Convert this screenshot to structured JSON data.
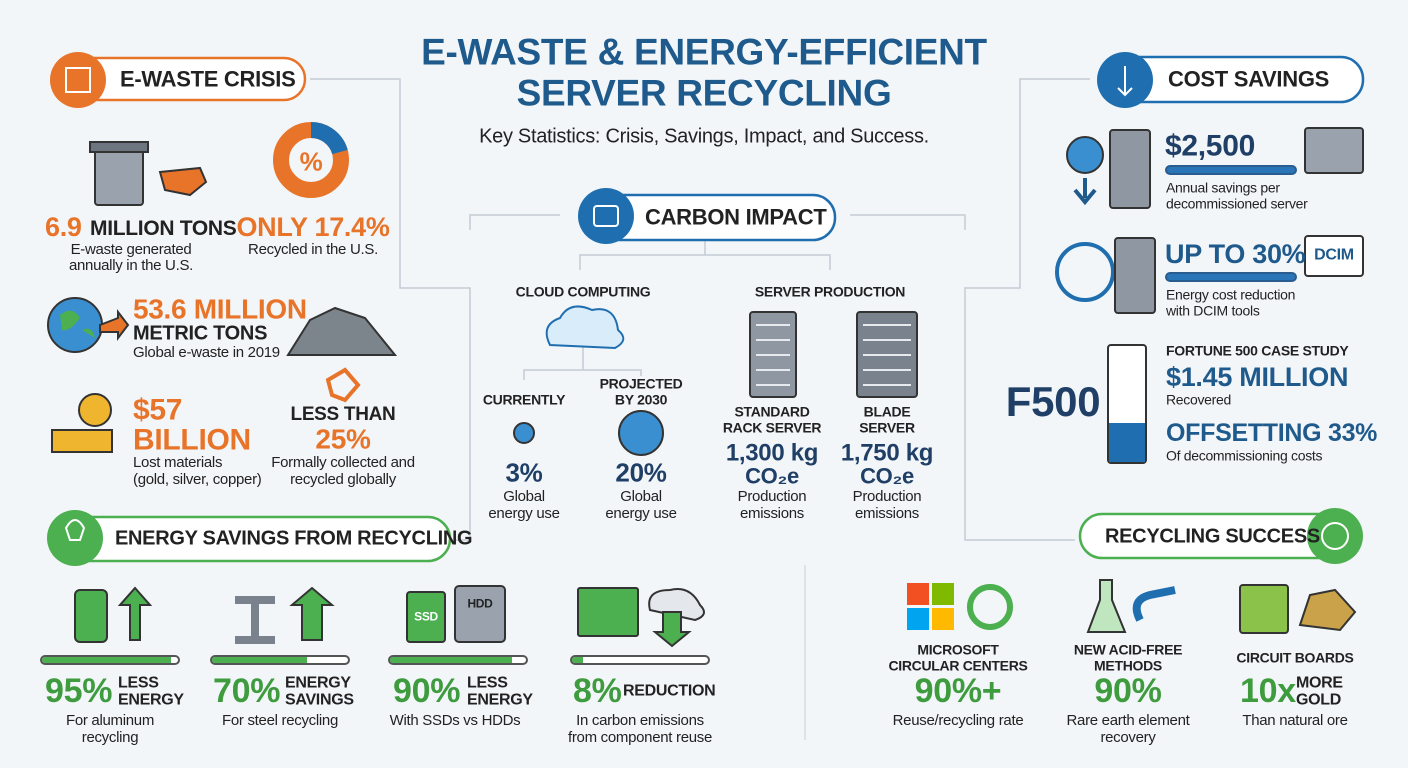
{
  "header": {
    "title": [
      "E-WASTE & ENERGY-EFFICIENT",
      "SERVER RECYCLING"
    ],
    "subtitle": "Key Statistics: Crisis, Savings, Impact, and Success."
  },
  "ewaste_crisis": {
    "heading": "E-WASTE CRISIS",
    "items": [
      {
        "value": "6.9",
        "unit": "MILLION TONS",
        "description": [
          "E-waste generated",
          "annually in the U.S."
        ]
      },
      {
        "value": "ONLY 17.4%",
        "icon_label": "%",
        "description": [
          "Recycled in the U.S."
        ]
      },
      {
        "value": "53.6 MILLION",
        "unit": "METRIC TONS",
        "description": [
          "Global e-waste in 2019"
        ]
      },
      {
        "value": [
          "$57",
          "BILLION"
        ],
        "description": [
          "Lost materials",
          "(gold, silver, copper)"
        ]
      },
      {
        "label": "LESS THAN",
        "value": "25%",
        "description": [
          "Formally collected and",
          "recycled globally"
        ]
      }
    ]
  },
  "carbon_impact": {
    "heading": "CARBON IMPACT",
    "cloud_computing": {
      "heading": "CLOUD COMPUTING",
      "items": [
        {
          "label": [
            "CURRENTLY"
          ],
          "value": "3%",
          "description": [
            "Global",
            "energy use"
          ]
        },
        {
          "label": [
            "PROJECTED",
            "BY 2030"
          ],
          "value": "20%",
          "description": [
            "Global",
            "energy use"
          ]
        }
      ]
    },
    "server_production": {
      "heading": "SERVER PRODUCTION",
      "items": [
        {
          "label": [
            "STANDARD",
            "RACK SERVER"
          ],
          "value": "1,300 kg",
          "unit": "CO₂e",
          "description": [
            "Production",
            "emissions"
          ]
        },
        {
          "label": [
            "BLADE",
            "SERVER"
          ],
          "value": "1,750 kg",
          "unit": "CO₂e",
          "description": [
            "Production",
            "emissions"
          ]
        }
      ]
    }
  },
  "cost_savings": {
    "heading": "COST SAVINGS",
    "items": [
      {
        "value": "$2,500",
        "description": [
          "Annual savings per",
          "decommissioned server"
        ]
      },
      {
        "value": "UP TO 30%",
        "icon_label": "DCIM",
        "description": [
          "Energy cost reduction",
          "with DCIM tools"
        ]
      }
    ],
    "case_study": {
      "icon_label": "F500",
      "heading": "FORTUNE 500 CASE STUDY",
      "value": "$1.45 MILLION",
      "value_description": "Recovered",
      "offset": "OFFSETTING 33%",
      "offset_description": "Of decommissioning costs"
    }
  },
  "energy_savings": {
    "heading": "ENERGY SAVINGS FROM RECYCLING",
    "items": [
      {
        "percent": {
          "value": 95,
          "label": "95%"
        },
        "label": [
          "LESS",
          "ENERGY"
        ],
        "description": [
          "For aluminum",
          "recycling"
        ]
      },
      {
        "percent": {
          "value": 70,
          "label": "70%"
        },
        "label": [
          "ENERGY",
          "SAVINGS"
        ],
        "description": [
          "For steel recycling"
        ]
      },
      {
        "percent": {
          "value": 90,
          "label": "90%"
        },
        "label": [
          "LESS",
          "ENERGY"
        ],
        "icon_labels": [
          "SSD",
          "HDD"
        ],
        "description": [
          "With SSDs vs HDDs"
        ]
      },
      {
        "percent": {
          "value": 8,
          "label": "8%"
        },
        "label": [
          "REDUCTION"
        ],
        "description": [
          "In carbon emissions",
          "from component reuse"
        ]
      }
    ]
  },
  "recycling_success": {
    "heading": "RECYCLING SUCCESS",
    "items": [
      {
        "label": [
          "MICROSOFT",
          "CIRCULAR CENTERS"
        ],
        "value": "90%+",
        "description": [
          "Reuse/recycling rate"
        ]
      },
      {
        "label": [
          "NEW ACID-FREE",
          "METHODS"
        ],
        "value": "90%",
        "description": [
          "Rare earth element",
          "recovery"
        ]
      },
      {
        "label": [
          "CIRCUIT BOARDS"
        ],
        "value": "10x",
        "unit": [
          "MORE",
          "GOLD"
        ],
        "description": [
          "Than natural ore"
        ]
      }
    ]
  }
}
